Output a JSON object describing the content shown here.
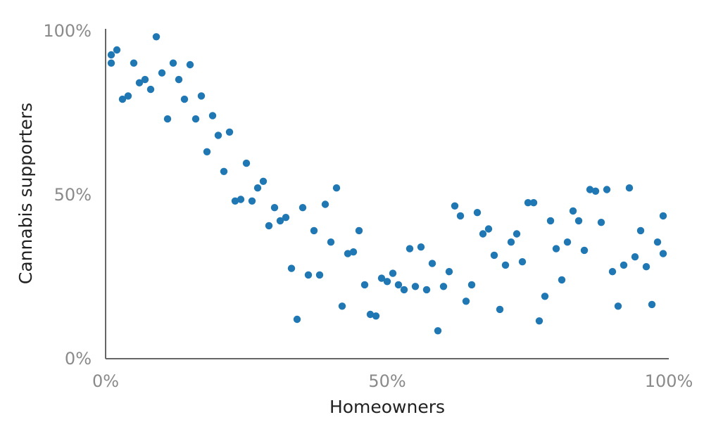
{
  "chart_data": {
    "type": "scatter",
    "xlabel": "Homeowners",
    "ylabel": "Cannabis supporters",
    "xlim": [
      0,
      100
    ],
    "ylim": [
      0,
      100
    ],
    "x_ticks": [
      "0%",
      "50%",
      "100%"
    ],
    "y_ticks": [
      "0%",
      "50%",
      "100%"
    ],
    "grid": false,
    "point_color": "#1f77b4",
    "points": [
      {
        "x": 1,
        "y": 92.5
      },
      {
        "x": 1,
        "y": 90
      },
      {
        "x": 2,
        "y": 94
      },
      {
        "x": 3,
        "y": 79
      },
      {
        "x": 4,
        "y": 80
      },
      {
        "x": 5,
        "y": 90
      },
      {
        "x": 6,
        "y": 84
      },
      {
        "x": 7,
        "y": 85
      },
      {
        "x": 8,
        "y": 82
      },
      {
        "x": 9,
        "y": 98
      },
      {
        "x": 10,
        "y": 87
      },
      {
        "x": 11,
        "y": 73
      },
      {
        "x": 12,
        "y": 90
      },
      {
        "x": 13,
        "y": 85
      },
      {
        "x": 14,
        "y": 79
      },
      {
        "x": 15,
        "y": 89.5
      },
      {
        "x": 16,
        "y": 73
      },
      {
        "x": 17,
        "y": 80
      },
      {
        "x": 18,
        "y": 63
      },
      {
        "x": 19,
        "y": 74
      },
      {
        "x": 20,
        "y": 68
      },
      {
        "x": 21,
        "y": 57
      },
      {
        "x": 22,
        "y": 69
      },
      {
        "x": 23,
        "y": 48
      },
      {
        "x": 24,
        "y": 48.5
      },
      {
        "x": 25,
        "y": 59.5
      },
      {
        "x": 26,
        "y": 48
      },
      {
        "x": 27,
        "y": 52
      },
      {
        "x": 28,
        "y": 54
      },
      {
        "x": 29,
        "y": 40.5
      },
      {
        "x": 30,
        "y": 46
      },
      {
        "x": 31,
        "y": 42
      },
      {
        "x": 32,
        "y": 43
      },
      {
        "x": 33,
        "y": 27.5
      },
      {
        "x": 34,
        "y": 12
      },
      {
        "x": 35,
        "y": 46
      },
      {
        "x": 36,
        "y": 25.5
      },
      {
        "x": 37,
        "y": 39
      },
      {
        "x": 38,
        "y": 25.5
      },
      {
        "x": 39,
        "y": 47
      },
      {
        "x": 40,
        "y": 35.5
      },
      {
        "x": 41,
        "y": 52
      },
      {
        "x": 42,
        "y": 16
      },
      {
        "x": 43,
        "y": 32
      },
      {
        "x": 44,
        "y": 32.5
      },
      {
        "x": 45,
        "y": 39
      },
      {
        "x": 46,
        "y": 22.5
      },
      {
        "x": 47,
        "y": 13.5
      },
      {
        "x": 48,
        "y": 13
      },
      {
        "x": 49,
        "y": 24.5
      },
      {
        "x": 50,
        "y": 23.5
      },
      {
        "x": 51,
        "y": 26
      },
      {
        "x": 52,
        "y": 22.5
      },
      {
        "x": 53,
        "y": 21
      },
      {
        "x": 54,
        "y": 33.5
      },
      {
        "x": 55,
        "y": 22
      },
      {
        "x": 56,
        "y": 34
      },
      {
        "x": 57,
        "y": 21
      },
      {
        "x": 58,
        "y": 29
      },
      {
        "x": 59,
        "y": 8.5
      },
      {
        "x": 60,
        "y": 22
      },
      {
        "x": 61,
        "y": 26.5
      },
      {
        "x": 62,
        "y": 46.5
      },
      {
        "x": 63,
        "y": 43.5
      },
      {
        "x": 64,
        "y": 17.5
      },
      {
        "x": 65,
        "y": 22.5
      },
      {
        "x": 66,
        "y": 44.5
      },
      {
        "x": 67,
        "y": 38
      },
      {
        "x": 68,
        "y": 39.5
      },
      {
        "x": 69,
        "y": 31.5
      },
      {
        "x": 70,
        "y": 15
      },
      {
        "x": 71,
        "y": 28.5
      },
      {
        "x": 72,
        "y": 35.5
      },
      {
        "x": 73,
        "y": 38
      },
      {
        "x": 74,
        "y": 29.5
      },
      {
        "x": 75,
        "y": 47.5
      },
      {
        "x": 76,
        "y": 47.5
      },
      {
        "x": 77,
        "y": 11.5
      },
      {
        "x": 78,
        "y": 19
      },
      {
        "x": 79,
        "y": 42
      },
      {
        "x": 80,
        "y": 33.5
      },
      {
        "x": 81,
        "y": 24
      },
      {
        "x": 82,
        "y": 35.5
      },
      {
        "x": 83,
        "y": 45
      },
      {
        "x": 84,
        "y": 42
      },
      {
        "x": 85,
        "y": 33
      },
      {
        "x": 86,
        "y": 51.5
      },
      {
        "x": 87,
        "y": 51
      },
      {
        "x": 88,
        "y": 41.5
      },
      {
        "x": 89,
        "y": 51.5
      },
      {
        "x": 90,
        "y": 26.5
      },
      {
        "x": 91,
        "y": 16
      },
      {
        "x": 92,
        "y": 28.5
      },
      {
        "x": 93,
        "y": 52
      },
      {
        "x": 94,
        "y": 31
      },
      {
        "x": 95,
        "y": 39
      },
      {
        "x": 96,
        "y": 28
      },
      {
        "x": 97,
        "y": 16.5
      },
      {
        "x": 98,
        "y": 35.5
      },
      {
        "x": 99,
        "y": 32
      },
      {
        "x": 99,
        "y": 43.5
      }
    ]
  }
}
